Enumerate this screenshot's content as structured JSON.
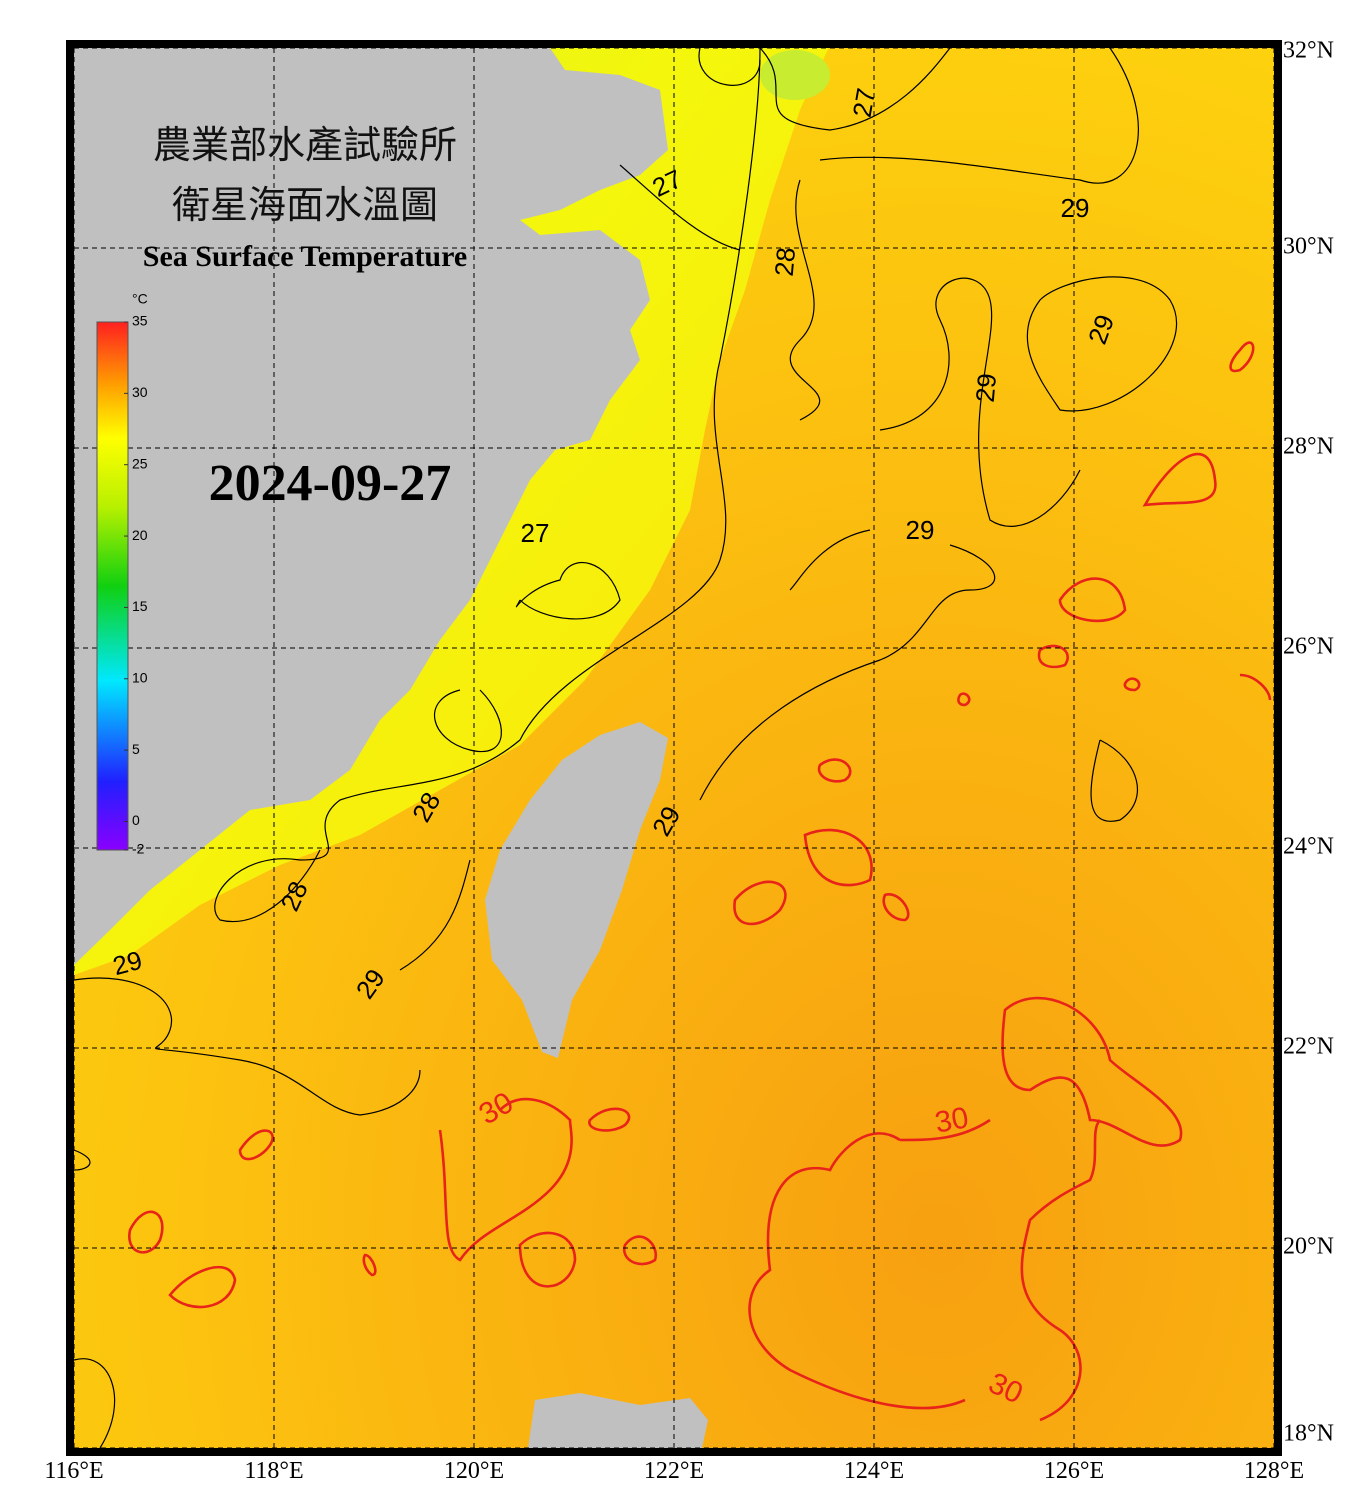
{
  "header": {
    "title_zh_1": "農業部水產試驗所",
    "title_zh_2": "衛星海面水溫圖",
    "title_en": "Sea Surface Temperature",
    "date": "2024-09-27"
  },
  "colorbar": {
    "unit": "°C",
    "range": [
      -2,
      35
    ],
    "ticks": [
      35,
      30,
      25,
      20,
      15,
      10,
      5,
      0,
      -2
    ]
  },
  "map": {
    "lon_range": [
      116,
      128
    ],
    "lat_range": [
      18,
      32
    ],
    "lon_ticks": [
      {
        "value": 116,
        "label": "116°E"
      },
      {
        "value": 118,
        "label": "118°E"
      },
      {
        "value": 120,
        "label": "120°E"
      },
      {
        "value": 122,
        "label": "122°E"
      },
      {
        "value": 124,
        "label": "124°E"
      },
      {
        "value": 126,
        "label": "126°E"
      },
      {
        "value": 128,
        "label": "128°E"
      }
    ],
    "lat_ticks": [
      {
        "value": 18,
        "label": "18°N"
      },
      {
        "value": 20,
        "label": "20°N"
      },
      {
        "value": 22,
        "label": "22°N"
      },
      {
        "value": 24,
        "label": "24°N"
      },
      {
        "value": 26,
        "label": "26°N"
      },
      {
        "value": 28,
        "label": "28°N"
      },
      {
        "value": 30,
        "label": "30°N"
      },
      {
        "value": 32,
        "label": "32°N"
      }
    ],
    "contour_labels": [
      "27",
      "27",
      "28",
      "29",
      "29",
      "29",
      "29",
      "27",
      "28",
      "29",
      "28",
      "29",
      "29",
      "30",
      "30",
      "30"
    ]
  }
}
